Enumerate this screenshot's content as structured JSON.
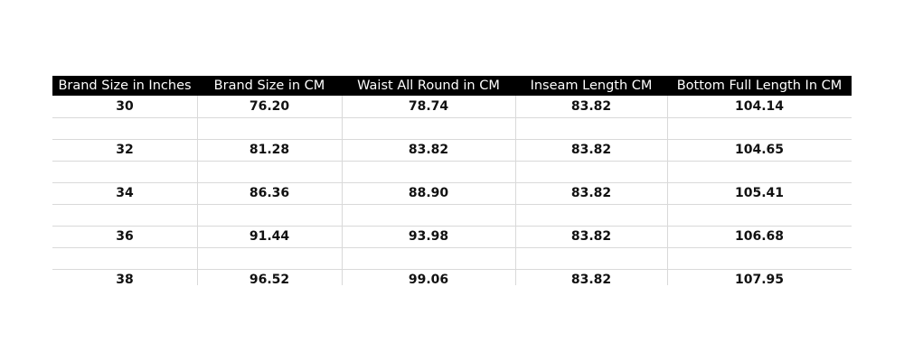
{
  "table": {
    "headers": [
      "Brand Size in Inches",
      "Brand Size in CM",
      "Waist All Round in CM",
      "Inseam Length CM",
      "Bottom Full Length In CM"
    ],
    "rows": [
      [
        "30",
        "76.20",
        "78.74",
        "83.82",
        "104.14"
      ],
      [
        "32",
        "81.28",
        "83.82",
        "83.82",
        "104.65"
      ],
      [
        "34",
        "86.36",
        "88.90",
        "83.82",
        "105.41"
      ],
      [
        "36",
        "91.44",
        "93.98",
        "83.82",
        "106.68"
      ],
      [
        "38",
        "96.52",
        "99.06",
        "83.82",
        "107.95"
      ]
    ],
    "header_bg": "#000000",
    "header_color": "#ffffff",
    "grid_color": "#d9d9d9"
  }
}
